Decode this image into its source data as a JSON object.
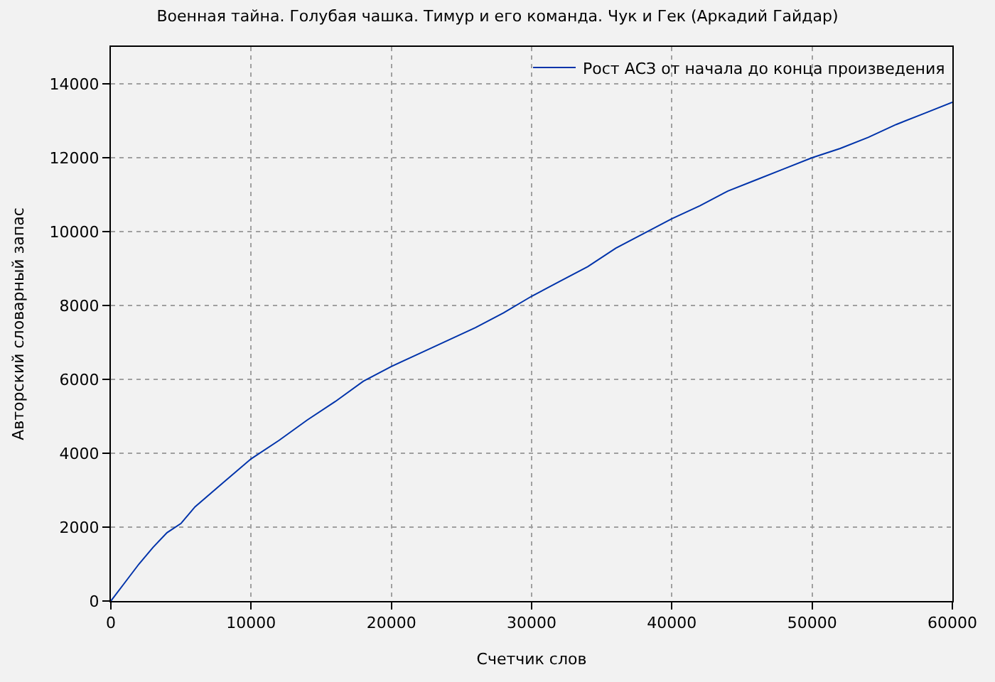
{
  "chart_data": {
    "type": "line",
    "title": "Военная тайна. Голубая чашка. Тимур и его команда. Чук и Гек (Аркадий Гайдар)",
    "xlabel": "Счетчик слов",
    "ylabel": "Авторский словарный запас",
    "x": [
      0,
      1000,
      2000,
      3000,
      4000,
      5000,
      6000,
      8000,
      10000,
      12000,
      14000,
      16000,
      18000,
      20000,
      22000,
      24000,
      26000,
      28000,
      30000,
      32000,
      34000,
      36000,
      38000,
      40000,
      42000,
      44000,
      46000,
      48000,
      50000,
      52000,
      54000,
      56000,
      58000,
      60000
    ],
    "series": [
      {
        "name": "Рост АСЗ от начала до конца произведения",
        "color": "#0033aa",
        "values": [
          0,
          500,
          1000,
          1450,
          1850,
          2100,
          2550,
          3200,
          3850,
          4350,
          4900,
          5400,
          5950,
          6350,
          6700,
          7050,
          7400,
          7800,
          8250,
          8650,
          9050,
          9550,
          9950,
          10350,
          10700,
          11100,
          11400,
          11700,
          12000,
          12250,
          12550,
          12900,
          13200,
          13500
        ]
      }
    ],
    "xlim": [
      0,
      60000
    ],
    "xticks": [
      0,
      10000,
      20000,
      30000,
      40000,
      50000,
      60000
    ],
    "ylim": [
      0,
      15000
    ],
    "yticks": [
      0,
      2000,
      4000,
      6000,
      8000,
      10000,
      12000,
      14000
    ],
    "grid": true,
    "legend": "top right",
    "line_style": "solid",
    "marker": "none"
  }
}
